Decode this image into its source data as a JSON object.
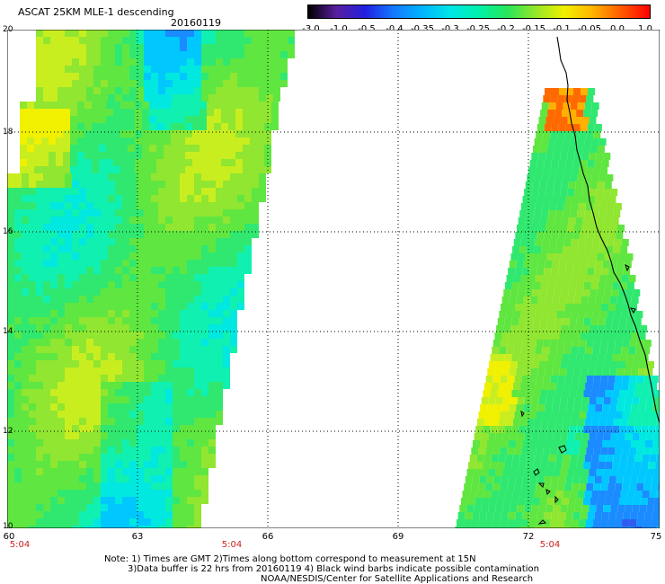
{
  "header": {
    "title": "ASCAT 25KM MLE-1 descending",
    "date": "20160119"
  },
  "colorbar": {
    "labels": [
      "-3.0",
      "-1.0",
      "-0.5",
      "-0.4",
      "-0.35",
      "-0.3",
      "-0.25",
      "-0.2",
      "-0.15",
      "-0.1",
      "-0.05",
      "0.0",
      "1.0"
    ],
    "colors": [
      "#000000",
      "#5a1fa0",
      "#2020e0",
      "#1478ff",
      "#00b4ff",
      "#00e6e6",
      "#00f0aa",
      "#28e65a",
      "#96e628",
      "#f0f000",
      "#ffb400",
      "#ff5a00",
      "#ff0000"
    ]
  },
  "axes": {
    "lat_labels": [
      "20",
      "18",
      "16",
      "14",
      "12",
      "10"
    ],
    "lon_labels": [
      "60",
      "63",
      "66",
      "69",
      "72",
      "75"
    ]
  },
  "time_labels": [
    "5:04",
    "5:04",
    "5:04"
  ],
  "footer": {
    "note_line1": "Note: 1) Times are GMT 2)Times along bottom correspond to measurement at 15N",
    "note_line2": "3)Data buffer is 22 hrs from 20160119 4) Black wind barbs indicate possible contamination",
    "note_line3": "NOAA/NESDIS/Center for Satellite Applications and Research"
  }
}
